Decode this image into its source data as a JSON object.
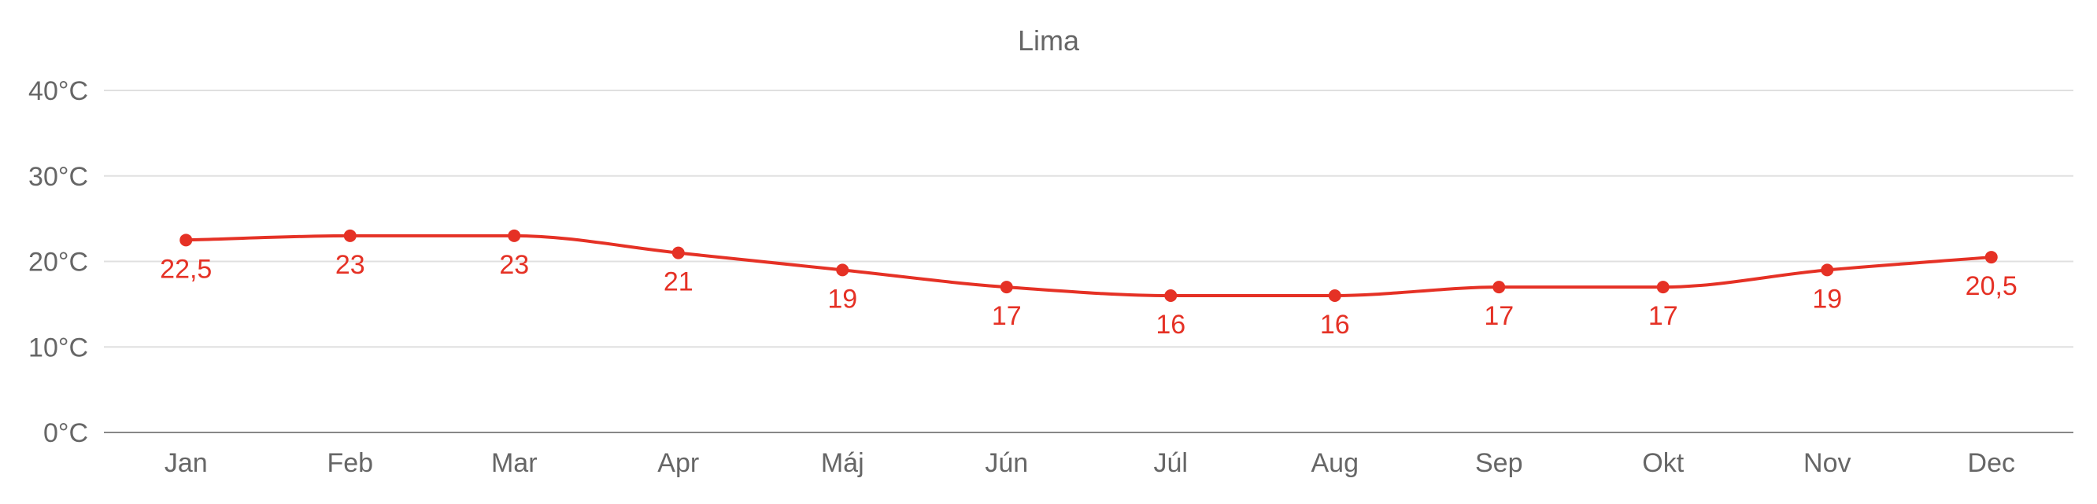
{
  "chart_data": {
    "type": "line",
    "title": "Lima",
    "xlabel": "",
    "ylabel": "",
    "categories": [
      "Jan",
      "Feb",
      "Mar",
      "Apr",
      "Máj",
      "Jún",
      "Júl",
      "Aug",
      "Sep",
      "Okt",
      "Nov",
      "Dec"
    ],
    "series": [
      {
        "values": [
          22.5,
          23,
          23,
          21,
          19,
          17,
          16,
          16,
          17,
          17,
          19,
          20.5
        ],
        "labels": [
          "22,5",
          "23",
          "23",
          "21",
          "19",
          "17",
          "16",
          "16",
          "17",
          "17",
          "19",
          "20,5"
        ],
        "color": "#e53125"
      }
    ],
    "ylim": [
      0,
      40
    ],
    "yticks": [
      0,
      10,
      20,
      30,
      40
    ],
    "ytick_labels": [
      "0°C",
      "10°C",
      "20°C",
      "30°C",
      "40°C"
    ],
    "grid": true,
    "legend": "none"
  }
}
